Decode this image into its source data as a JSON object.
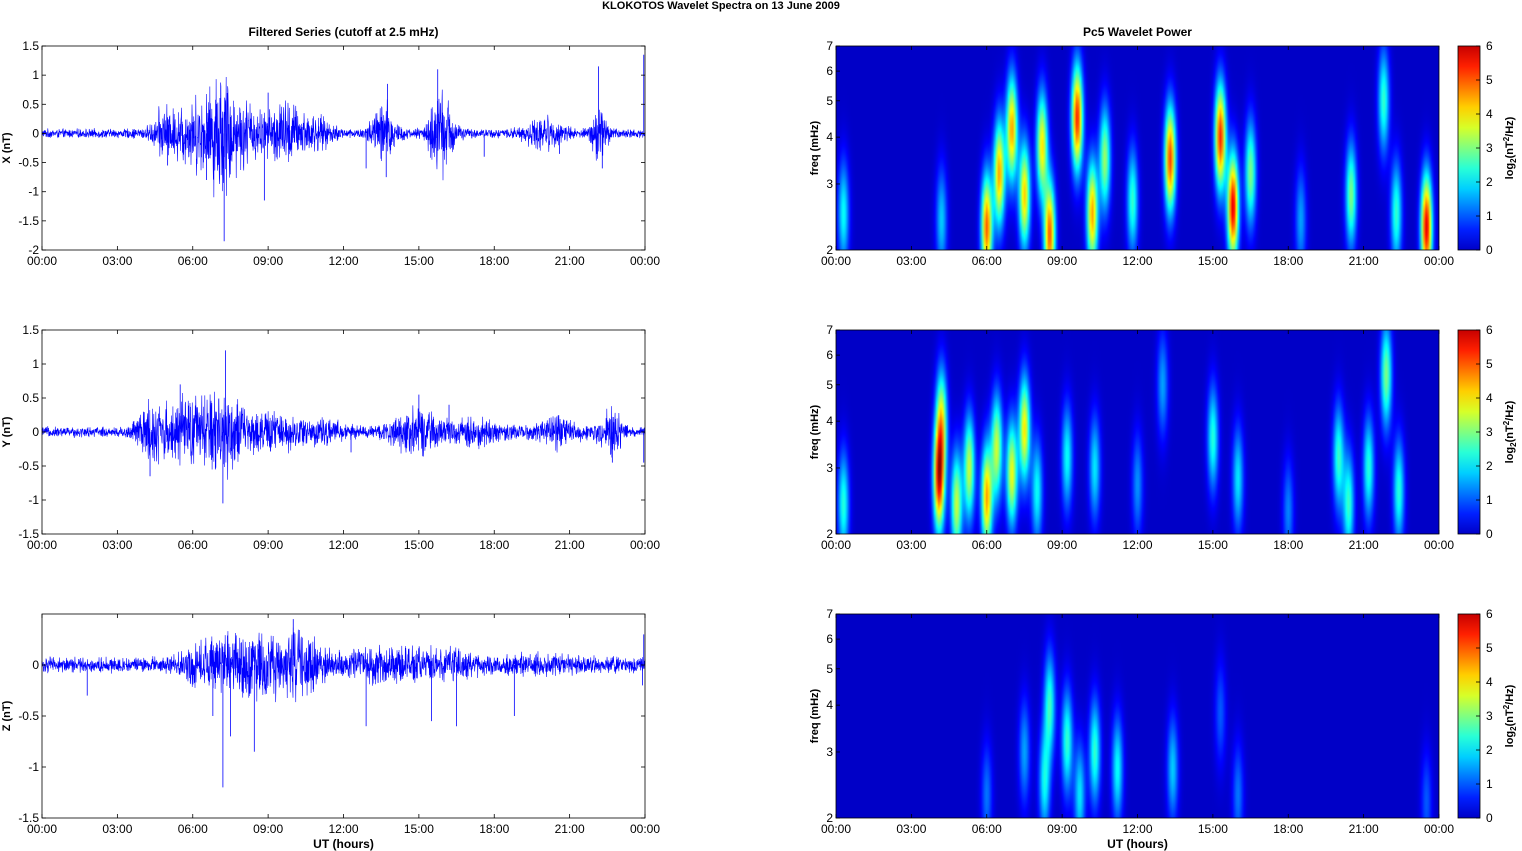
{
  "figure": {
    "title": "KLOKOTOS Wavelet Spectra on 13 June      2009"
  },
  "colors": {
    "trace": "#0000ff",
    "axis": "#000000",
    "background": "#ffffff",
    "colormap": "jet"
  },
  "chart_data": [
    {
      "type": "line",
      "title": "Filtered Series (cutoff at 2.5 mHz)",
      "xlabel": "",
      "ylabel": "X (nT)",
      "xlim": [
        0,
        24
      ],
      "ylim": [
        -2,
        1.5
      ],
      "x_tick_labels": [
        "00:00",
        "03:00",
        "06:00",
        "09:00",
        "12:00",
        "15:00",
        "18:00",
        "21:00",
        "00:00"
      ],
      "y_ticks": [
        -2,
        -1.5,
        -1,
        -0.5,
        0,
        0.5,
        1,
        1.5
      ],
      "y_tick_labels": [
        "-2",
        "-1.5",
        "-1",
        "-0.5",
        "0",
        "0.5",
        "1",
        "1.5"
      ],
      "activity": [
        {
          "t": 4.8,
          "w": 0.3,
          "a": 0.2
        },
        {
          "t": 6.2,
          "w": 1.3,
          "a": 0.45
        },
        {
          "t": 7.2,
          "w": 0.5,
          "a": 0.6
        },
        {
          "t": 8.2,
          "w": 0.6,
          "a": 0.35
        },
        {
          "t": 9.6,
          "w": 0.7,
          "a": 0.4
        },
        {
          "t": 10.8,
          "w": 0.8,
          "a": 0.2
        },
        {
          "t": 13.6,
          "w": 0.5,
          "a": 0.4
        },
        {
          "t": 15.9,
          "w": 0.5,
          "a": 0.55
        },
        {
          "t": 20.0,
          "w": 0.8,
          "a": 0.18
        },
        {
          "t": 22.2,
          "w": 0.3,
          "a": 0.4
        }
      ],
      "spikes": [
        {
          "t": 7.25,
          "v": -1.85
        },
        {
          "t": 8.85,
          "v": -1.15
        },
        {
          "t": 13.75,
          "v": 0.85
        },
        {
          "t": 15.75,
          "v": 1.1
        },
        {
          "t": 22.15,
          "v": 1.15
        },
        {
          "t": 23.95,
          "v": 1.35
        },
        {
          "t": 6.55,
          "v": -0.8
        },
        {
          "t": 13.7,
          "v": -0.75
        },
        {
          "t": 9.0,
          "v": 0.7
        },
        {
          "t": 5.0,
          "v": -0.55
        },
        {
          "t": 22.3,
          "v": -0.6
        },
        {
          "t": 12.9,
          "v": -0.6
        },
        {
          "t": 17.6,
          "v": -0.4
        },
        {
          "t": 20.6,
          "v": -0.35
        }
      ]
    },
    {
      "type": "heatmap",
      "title": "Pc5 Wavelet Power",
      "xlabel": "",
      "ylabel": "freq (mHz)",
      "xlim": [
        0,
        24
      ],
      "ylim": [
        2,
        7
      ],
      "yscale": "log",
      "x_tick_labels": [
        "00:00",
        "03:00",
        "06:00",
        "09:00",
        "12:00",
        "15:00",
        "18:00",
        "21:00",
        "00:00"
      ],
      "y_ticks": [
        2,
        3,
        4,
        5,
        6,
        7
      ],
      "y_tick_labels": [
        "2",
        "3",
        "4",
        "5",
        "6",
        "7"
      ],
      "colorbar": {
        "label": "log2(nT2/Hz)",
        "range": [
          0,
          6
        ],
        "tick_labels": [
          "0",
          "1",
          "2",
          "3",
          "4",
          "5",
          "6"
        ]
      },
      "blobs": [
        {
          "t": 0.3,
          "f": 2.5,
          "a": 2.2
        },
        {
          "t": 4.2,
          "f": 2.4,
          "a": 1.8
        },
        {
          "t": 6.0,
          "f": 2.3,
          "a": 5.0
        },
        {
          "t": 6.5,
          "f": 3.2,
          "a": 4.5
        },
        {
          "t": 7.0,
          "f": 4.2,
          "a": 4.5
        },
        {
          "t": 7.5,
          "f": 2.8,
          "a": 4.2
        },
        {
          "t": 8.2,
          "f": 3.8,
          "a": 4.0
        },
        {
          "t": 8.5,
          "f": 2.2,
          "a": 5.0
        },
        {
          "t": 9.6,
          "f": 4.5,
          "a": 5.4
        },
        {
          "t": 10.2,
          "f": 2.5,
          "a": 4.5
        },
        {
          "t": 10.7,
          "f": 3.5,
          "a": 3.2
        },
        {
          "t": 11.8,
          "f": 2.7,
          "a": 2.5
        },
        {
          "t": 13.3,
          "f": 3.5,
          "a": 5.2
        },
        {
          "t": 15.3,
          "f": 4.0,
          "a": 5.4
        },
        {
          "t": 15.8,
          "f": 2.6,
          "a": 5.8
        },
        {
          "t": 16.5,
          "f": 3.2,
          "a": 3.0
        },
        {
          "t": 18.5,
          "f": 2.4,
          "a": 1.5
        },
        {
          "t": 20.5,
          "f": 2.8,
          "a": 3.0
        },
        {
          "t": 21.8,
          "f": 5.0,
          "a": 2.5
        },
        {
          "t": 22.3,
          "f": 2.5,
          "a": 2.5
        },
        {
          "t": 23.5,
          "f": 2.3,
          "a": 5.8
        }
      ]
    },
    {
      "type": "line",
      "title": "",
      "xlabel": "",
      "ylabel": "Y (nT)",
      "xlim": [
        0,
        24
      ],
      "ylim": [
        -1.5,
        1.5
      ],
      "x_tick_labels": [
        "00:00",
        "03:00",
        "06:00",
        "09:00",
        "12:00",
        "15:00",
        "18:00",
        "21:00",
        "00:00"
      ],
      "y_ticks": [
        -1.5,
        -1,
        -0.5,
        0,
        0.5,
        1,
        1.5
      ],
      "y_tick_labels": [
        "-1.5",
        "-1",
        "-0.5",
        "0",
        "0.5",
        "1",
        "1.5"
      ],
      "activity": [
        {
          "t": 4.4,
          "w": 0.6,
          "a": 0.35
        },
        {
          "t": 5.8,
          "w": 0.8,
          "a": 0.35
        },
        {
          "t": 7.2,
          "w": 0.8,
          "a": 0.45
        },
        {
          "t": 9.0,
          "w": 1.2,
          "a": 0.18
        },
        {
          "t": 11.0,
          "w": 1.2,
          "a": 0.1
        },
        {
          "t": 14.8,
          "w": 1.0,
          "a": 0.22
        },
        {
          "t": 17.2,
          "w": 1.2,
          "a": 0.12
        },
        {
          "t": 20.5,
          "w": 0.9,
          "a": 0.15
        },
        {
          "t": 22.6,
          "w": 0.5,
          "a": 0.25
        }
      ],
      "spikes": [
        {
          "t": 7.3,
          "v": 1.2
        },
        {
          "t": 7.2,
          "v": -1.05
        },
        {
          "t": 4.3,
          "v": -0.65
        },
        {
          "t": 5.5,
          "v": 0.7
        },
        {
          "t": 6.9,
          "v": -0.55
        },
        {
          "t": 15.0,
          "v": 0.55
        },
        {
          "t": 22.7,
          "v": -0.45
        },
        {
          "t": 23.95,
          "v": -0.45
        },
        {
          "t": 16.2,
          "v": 0.4
        },
        {
          "t": 12.3,
          "v": -0.3
        }
      ]
    },
    {
      "type": "heatmap",
      "title": "",
      "xlabel": "",
      "ylabel": "freq (mHz)",
      "xlim": [
        0,
        24
      ],
      "ylim": [
        2,
        7
      ],
      "yscale": "log",
      "x_tick_labels": [
        "00:00",
        "03:00",
        "06:00",
        "09:00",
        "12:00",
        "15:00",
        "18:00",
        "21:00",
        "00:00"
      ],
      "y_ticks": [
        2,
        3,
        4,
        5,
        6,
        7
      ],
      "y_tick_labels": [
        "2",
        "3",
        "4",
        "5",
        "6",
        "7"
      ],
      "colorbar": {
        "label": "log2(nT2/Hz)",
        "range": [
          0,
          6
        ],
        "tick_labels": [
          "0",
          "1",
          "2",
          "3",
          "4",
          "5",
          "6"
        ]
      },
      "blobs": [
        {
          "t": 0.3,
          "f": 2.4,
          "a": 2.4
        },
        {
          "t": 4.1,
          "f": 2.8,
          "a": 5.5
        },
        {
          "t": 4.2,
          "f": 4.0,
          "a": 3.5
        },
        {
          "t": 4.8,
          "f": 2.4,
          "a": 3.5
        },
        {
          "t": 5.3,
          "f": 3.0,
          "a": 3.5
        },
        {
          "t": 6.0,
          "f": 2.5,
          "a": 4.5
        },
        {
          "t": 6.4,
          "f": 3.4,
          "a": 3.5
        },
        {
          "t": 7.0,
          "f": 2.9,
          "a": 3.8
        },
        {
          "t": 7.5,
          "f": 3.8,
          "a": 4.0
        },
        {
          "t": 8.0,
          "f": 2.6,
          "a": 2.2
        },
        {
          "t": 9.2,
          "f": 3.2,
          "a": 2.2
        },
        {
          "t": 10.3,
          "f": 3.0,
          "a": 2.0
        },
        {
          "t": 12.0,
          "f": 2.7,
          "a": 1.4
        },
        {
          "t": 13.0,
          "f": 5.0,
          "a": 1.5
        },
        {
          "t": 15.0,
          "f": 3.6,
          "a": 2.4
        },
        {
          "t": 16.0,
          "f": 2.8,
          "a": 2.0
        },
        {
          "t": 18.0,
          "f": 2.3,
          "a": 1.3
        },
        {
          "t": 20.0,
          "f": 3.2,
          "a": 2.5
        },
        {
          "t": 20.4,
          "f": 2.4,
          "a": 2.5
        },
        {
          "t": 21.2,
          "f": 3.0,
          "a": 2.4
        },
        {
          "t": 21.9,
          "f": 5.3,
          "a": 3.0
        },
        {
          "t": 22.4,
          "f": 2.6,
          "a": 2.4
        }
      ]
    },
    {
      "type": "line",
      "title": "",
      "xlabel": "UT (hours)",
      "ylabel": "Z (nT)",
      "xlim": [
        0,
        24
      ],
      "ylim": [
        -1.5,
        0.5
      ],
      "x_tick_labels": [
        "00:00",
        "03:00",
        "06:00",
        "09:00",
        "12:00",
        "15:00",
        "18:00",
        "21:00",
        "00:00"
      ],
      "y_ticks": [
        -1.5,
        -1,
        -0.5,
        0
      ],
      "y_tick_labels": [
        "-1.5",
        "-1",
        "-0.5",
        "0"
      ],
      "activity": [
        {
          "t": 6.5,
          "w": 1.0,
          "a": 0.12
        },
        {
          "t": 8.5,
          "w": 1.5,
          "a": 0.2
        },
        {
          "t": 10.3,
          "w": 1.0,
          "a": 0.16
        },
        {
          "t": 13.5,
          "w": 1.5,
          "a": 0.1
        },
        {
          "t": 16.0,
          "w": 1.3,
          "a": 0.08
        },
        {
          "t": 20.0,
          "w": 1.5,
          "a": 0.04
        }
      ],
      "spikes": [
        {
          "t": 7.2,
          "v": -1.2
        },
        {
          "t": 8.45,
          "v": -0.85
        },
        {
          "t": 7.5,
          "v": -0.7
        },
        {
          "t": 6.8,
          "v": -0.5
        },
        {
          "t": 10.0,
          "v": 0.45
        },
        {
          "t": 12.9,
          "v": -0.6
        },
        {
          "t": 15.5,
          "v": -0.55
        },
        {
          "t": 16.5,
          "v": -0.6
        },
        {
          "t": 18.8,
          "v": -0.5
        },
        {
          "t": 1.8,
          "v": -0.3
        },
        {
          "t": 23.95,
          "v": 0.3
        },
        {
          "t": 23.9,
          "v": -0.2
        }
      ]
    },
    {
      "type": "heatmap",
      "title": "",
      "xlabel": "UT (hours)",
      "ylabel": "freq (mHz)",
      "xlim": [
        0,
        24
      ],
      "ylim": [
        2,
        7
      ],
      "yscale": "log",
      "x_tick_labels": [
        "00:00",
        "03:00",
        "06:00",
        "09:00",
        "12:00",
        "15:00",
        "18:00",
        "21:00",
        "00:00"
      ],
      "y_ticks": [
        2,
        3,
        4,
        5,
        6,
        7
      ],
      "y_tick_labels": [
        "2",
        "3",
        "4",
        "5",
        "6",
        "7"
      ],
      "colorbar": {
        "label": "log2(nT2/Hz)",
        "range": [
          0,
          6
        ],
        "tick_labels": [
          "0",
          "1",
          "2",
          "3",
          "4",
          "5",
          "6"
        ]
      },
      "blobs": [
        {
          "t": 6.0,
          "f": 2.3,
          "a": 1.2
        },
        {
          "t": 7.5,
          "f": 3.0,
          "a": 1.5
        },
        {
          "t": 8.3,
          "f": 2.5,
          "a": 2.2
        },
        {
          "t": 8.5,
          "f": 4.0,
          "a": 2.5
        },
        {
          "t": 9.2,
          "f": 3.2,
          "a": 2.5
        },
        {
          "t": 9.7,
          "f": 2.3,
          "a": 2.0
        },
        {
          "t": 10.3,
          "f": 3.0,
          "a": 2.5
        },
        {
          "t": 11.2,
          "f": 2.7,
          "a": 2.2
        },
        {
          "t": 13.4,
          "f": 2.7,
          "a": 1.8
        },
        {
          "t": 15.3,
          "f": 3.8,
          "a": 1.0
        },
        {
          "t": 16.0,
          "f": 2.3,
          "a": 1.2
        },
        {
          "t": 23.5,
          "f": 2.2,
          "a": 1.0
        }
      ]
    }
  ]
}
